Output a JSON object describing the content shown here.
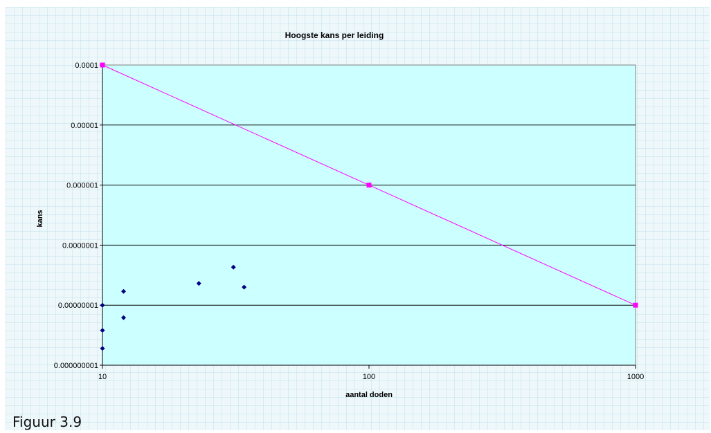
{
  "caption": "Figuur 3.9",
  "chart_data": {
    "type": "scatter",
    "title": "Hoogste kans per leiding",
    "xlabel": "aantal doden",
    "ylabel": "kans",
    "xscale": "log",
    "yscale": "log",
    "xlim": [
      10,
      1000
    ],
    "ylim": [
      1e-09,
      0.0001
    ],
    "x_ticks": [
      "10",
      "100",
      "1000"
    ],
    "y_ticks": [
      "0.0001",
      "0.00001",
      "0.000001",
      "0.0000001",
      "0.00000001",
      "0.000000001"
    ],
    "grid": "horizontal",
    "plot_background": "#ccffff",
    "series": [
      {
        "kind": "markers",
        "color": "#000080",
        "marker": "diamond",
        "points": [
          {
            "x": 10,
            "y": 1e-08
          },
          {
            "x": 10,
            "y": 3.8e-09
          },
          {
            "x": 10,
            "y": 1.9e-09
          },
          {
            "x": 12,
            "y": 1.7e-08
          },
          {
            "x": 12,
            "y": 6.2e-09
          },
          {
            "x": 23,
            "y": 2.3e-08
          },
          {
            "x": 31,
            "y": 4.3e-08
          },
          {
            "x": 34,
            "y": 2e-08
          }
        ]
      },
      {
        "kind": "line",
        "color": "#ff00ff",
        "marker": "square",
        "points": [
          {
            "x": 10,
            "y": 0.0001
          },
          {
            "x": 100,
            "y": 1e-06
          },
          {
            "x": 1000,
            "y": 1e-08
          }
        ]
      }
    ]
  }
}
